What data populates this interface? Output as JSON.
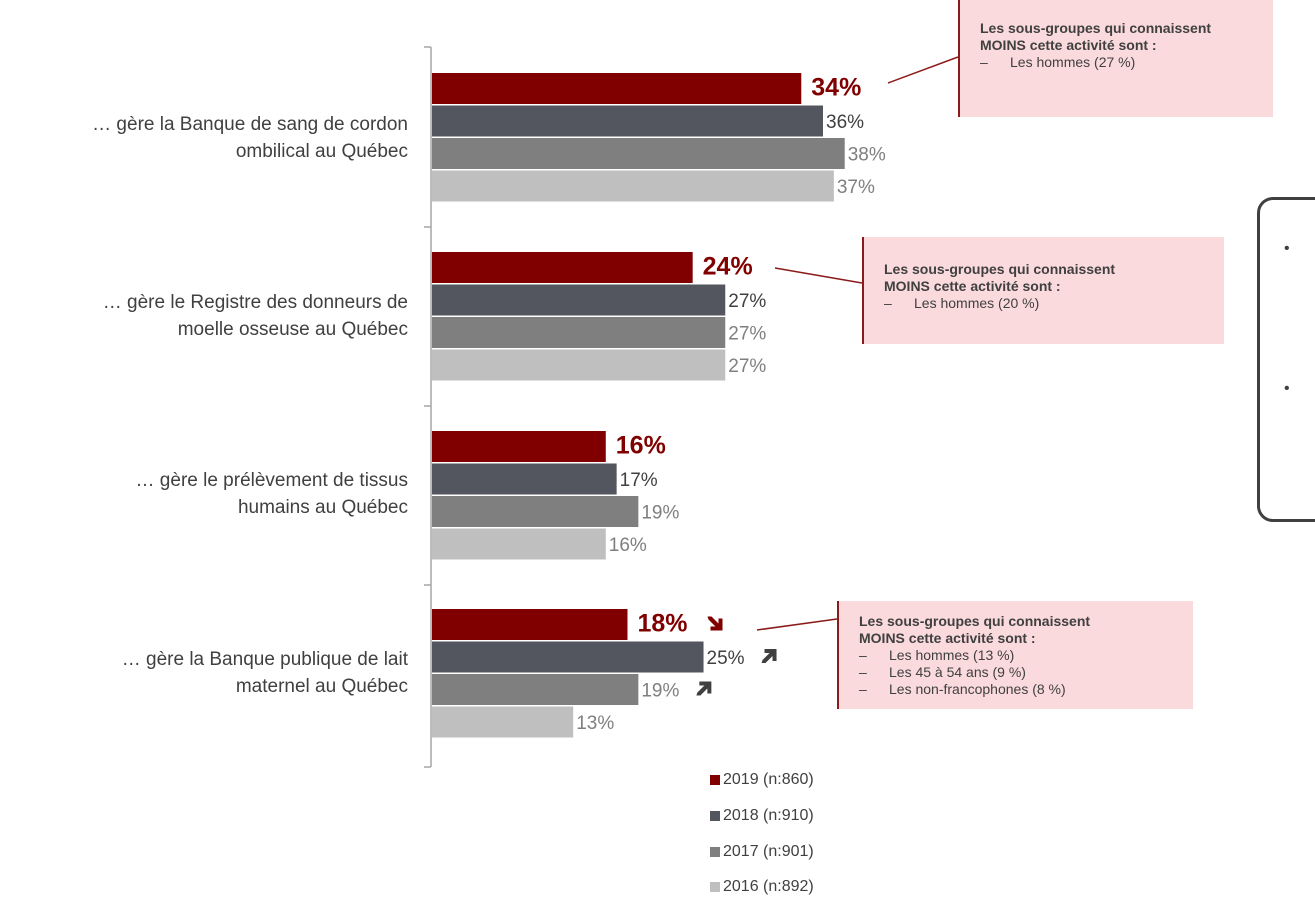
{
  "chart_data": {
    "type": "bar",
    "orientation": "horizontal",
    "categories": [
      "… gère la Banque de sang de cordon ombilical au Québec",
      "… gère le Registre des donneurs de moelle osseuse au Québec",
      "… gère le prélèvement de tissus humains au Québec",
      "… gère la Banque publique de lait maternel au Québec"
    ],
    "category_lines": [
      [
        "… gère la Banque de sang de cordon",
        "ombilical au Québec"
      ],
      [
        "… gère le Registre des donneurs de",
        "moelle osseuse au Québec"
      ],
      [
        "… gère le prélèvement de tissus",
        "humains au Québec"
      ],
      [
        "… gère la Banque publique de lait",
        "maternel au Québec"
      ]
    ],
    "series": [
      {
        "name": "2019 (n:860)",
        "color": "#800000",
        "values": [
          34,
          24,
          16,
          18
        ],
        "labels": [
          "34%",
          "24%",
          "16%",
          "18%"
        ],
        "bold": true
      },
      {
        "name": "2018 (n:910)",
        "color": "#53565e",
        "values": [
          36,
          27,
          17,
          25
        ],
        "labels": [
          "36%",
          "27%",
          "17%",
          "25%"
        ]
      },
      {
        "name": "2017 (n:901)",
        "color": "#7f7f7f",
        "values": [
          38,
          27,
          19,
          19
        ],
        "labels": [
          "38%",
          "27%",
          "19%",
          "19%"
        ]
      },
      {
        "name": "2016 (n:892)",
        "color": "#bfbfbf",
        "values": [
          37,
          27,
          16,
          13
        ],
        "labels": [
          "37%",
          "27%",
          "16%",
          "13%"
        ]
      }
    ],
    "trend_markers": [
      {
        "category": 3,
        "series": 0,
        "direction": "down"
      },
      {
        "category": 3,
        "series": 1,
        "direction": "up"
      },
      {
        "category": 3,
        "series": 2,
        "direction": "up"
      }
    ],
    "value_label_colors": [
      "#800000",
      "#404040",
      "#7f7f7f",
      "#7f7f7f"
    ],
    "xlim": [
      0,
      50
    ],
    "legend_position": "bottom",
    "grid": false
  },
  "callouts": [
    {
      "title_1": "Les sous-groupes qui connaissent",
      "title_2": "MOINS cette activité sont :",
      "items": [
        "Les hommes (27 %)"
      ]
    },
    {
      "title_1": "Les sous-groupes qui connaissent",
      "title_2": "MOINS cette activité sont :",
      "items": [
        "Les hommes (20 %)"
      ]
    },
    {
      "title_1": "Les sous-groupes qui connaissent",
      "title_2": "MOINS cette activité sont :",
      "items": [
        "Les hommes (13 %)",
        "Les 45 à 54 ans (9 %)",
        "Les non-francophones (8 %)"
      ]
    }
  ],
  "dash_symbol": "–",
  "side_bullet": "•"
}
